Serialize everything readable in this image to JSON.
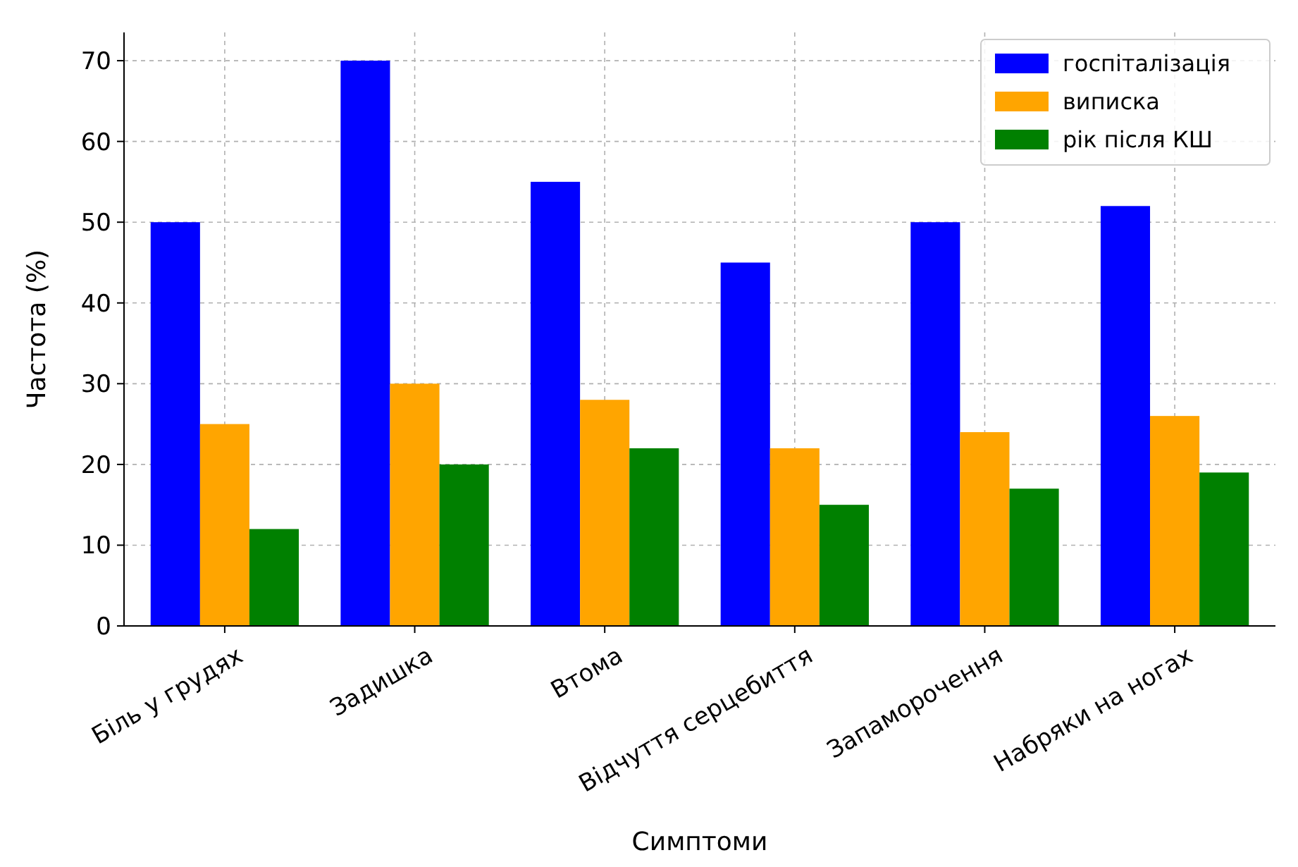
{
  "chart_data": {
    "type": "bar",
    "xlabel": "Симптоми",
    "ylabel": "Частота (%)",
    "categories": [
      "Біль у грудях",
      "Задишка",
      "Втома",
      "Відчуття серцебиття",
      "Запаморочення",
      "Набряки на ногах"
    ],
    "series": [
      {
        "name": "госпіталізація",
        "color": "#0000ff",
        "values": [
          50,
          70,
          55,
          45,
          50,
          52
        ]
      },
      {
        "name": "виписка",
        "color": "#ffa500",
        "values": [
          25,
          30,
          28,
          22,
          24,
          26
        ]
      },
      {
        "name": "рік після КШ",
        "color": "#008000",
        "values": [
          12,
          20,
          22,
          15,
          17,
          19
        ]
      }
    ],
    "ylim": [
      0,
      73.5
    ],
    "yticks": [
      0,
      10,
      20,
      30,
      40,
      50,
      60,
      70
    ],
    "grid": true,
    "legend": "top right"
  }
}
